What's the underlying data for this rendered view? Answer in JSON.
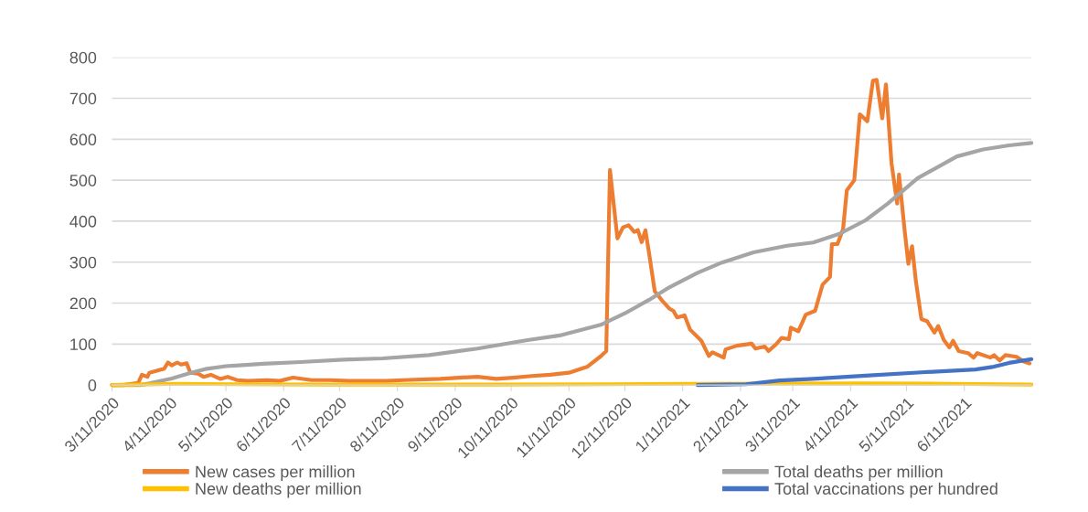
{
  "chart_data": {
    "type": "line",
    "xlim": [
      "2020-03-11",
      "2021-07-17"
    ],
    "xticks": [
      {
        "value": "2020-03-11",
        "label": "3/11/2020"
      },
      {
        "value": "2020-04-11",
        "label": "4/11/2020"
      },
      {
        "value": "2020-05-11",
        "label": "5/11/2020"
      },
      {
        "value": "2020-06-11",
        "label": "6/11/2020"
      },
      {
        "value": "2020-07-11",
        "label": "7/11/2020"
      },
      {
        "value": "2020-08-11",
        "label": "8/11/2020"
      },
      {
        "value": "2020-09-11",
        "label": "9/11/2020"
      },
      {
        "value": "2020-10-11",
        "label": "10/11/2020"
      },
      {
        "value": "2020-11-11",
        "label": "11/11/2020"
      },
      {
        "value": "2020-12-11",
        "label": "12/11/2020"
      },
      {
        "value": "2021-01-11",
        "label": "1/11/2021"
      },
      {
        "value": "2021-02-11",
        "label": "2/11/2021"
      },
      {
        "value": "2021-03-11",
        "label": "3/11/2021"
      },
      {
        "value": "2021-04-11",
        "label": "4/11/2021"
      },
      {
        "value": "2021-05-11",
        "label": "5/11/2021"
      },
      {
        "value": "2021-06-11",
        "label": "6/11/2021"
      }
    ],
    "ylim": [
      0,
      800
    ],
    "yticks": [
      0,
      100,
      200,
      300,
      400,
      500,
      600,
      700,
      800
    ],
    "grid": "y",
    "legend": "bottom",
    "marker": "none",
    "line_style": "solid",
    "series": [
      {
        "name": "New cases per million",
        "color": "#ed7d31",
        "x": [
          "2020-03-11",
          "2020-03-17",
          "2020-03-25",
          "2020-03-27",
          "2020-03-30",
          "2020-03-31",
          "2020-04-04",
          "2020-04-08",
          "2020-04-10",
          "2020-04-12",
          "2020-04-15",
          "2020-04-17",
          "2020-04-20",
          "2020-04-22",
          "2020-04-26",
          "2020-04-29",
          "2020-05-03",
          "2020-05-08",
          "2020-05-12",
          "2020-05-17",
          "2020-05-23",
          "2020-06-02",
          "2020-06-09",
          "2020-06-16",
          "2020-06-26",
          "2020-07-06",
          "2020-07-16",
          "2020-08-05",
          "2020-08-14",
          "2020-09-03",
          "2020-09-13",
          "2020-09-23",
          "2020-10-03",
          "2020-10-12",
          "2020-10-22",
          "2020-11-01",
          "2020-11-11",
          "2020-11-21",
          "2020-11-28",
          "2020-12-01",
          "2020-12-03",
          "2020-12-07",
          "2020-12-10",
          "2020-12-13",
          "2020-12-16",
          "2020-12-18",
          "2020-12-20",
          "2020-12-22",
          "2020-12-24",
          "2020-12-27",
          "2020-12-31",
          "2021-01-04",
          "2021-01-06",
          "2021-01-08",
          "2021-01-12",
          "2021-01-15",
          "2021-01-21",
          "2021-01-25",
          "2021-01-27",
          "2021-02-02",
          "2021-02-03",
          "2021-02-09",
          "2021-02-17",
          "2021-02-19",
          "2021-02-24",
          "2021-02-26",
          "2021-03-02",
          "2021-03-05",
          "2021-03-09",
          "2021-03-10",
          "2021-03-14",
          "2021-03-18",
          "2021-03-23",
          "2021-03-27",
          "2021-03-31",
          "2021-04-01",
          "2021-04-04",
          "2021-04-07",
          "2021-04-09",
          "2021-04-13",
          "2021-04-16",
          "2021-04-20",
          "2021-04-23",
          "2021-04-25",
          "2021-04-28",
          "2021-04-30",
          "2021-05-03",
          "2021-05-06",
          "2021-05-07",
          "2021-05-10",
          "2021-05-12",
          "2021-05-14",
          "2021-05-16",
          "2021-05-19",
          "2021-05-22",
          "2021-05-26",
          "2021-05-28",
          "2021-05-31",
          "2021-06-03",
          "2021-06-05",
          "2021-06-08",
          "2021-06-13",
          "2021-06-16",
          "2021-06-18",
          "2021-06-25",
          "2021-06-27",
          "2021-06-30",
          "2021-07-03",
          "2021-07-09",
          "2021-07-13",
          "2021-07-16"
        ],
        "values": [
          0,
          0,
          5,
          25,
          20,
          30,
          35,
          40,
          55,
          48,
          55,
          50,
          53,
          30,
          28,
          20,
          25,
          15,
          20,
          12,
          10,
          12,
          10,
          18,
          12,
          12,
          10,
          10,
          12,
          15,
          18,
          20,
          15,
          18,
          22,
          25,
          30,
          45,
          70,
          83,
          525,
          358,
          385,
          390,
          374,
          378,
          349,
          378,
          321,
          229,
          206,
          186,
          181,
          165,
          170,
          135,
          108,
          71,
          80,
          67,
          87,
          96,
          101,
          89,
          94,
          83,
          99,
          115,
          112,
          140,
          131,
          172,
          181,
          245,
          264,
          344,
          344,
          381,
          475,
          500,
          661,
          644,
          743,
          745,
          651,
          734,
          541,
          443,
          514,
          378,
          296,
          339,
          255,
          161,
          156,
          128,
          144,
          110,
          92,
          108,
          83,
          78,
          67,
          78,
          67,
          73,
          60,
          73,
          69,
          57,
          53
        ]
      },
      {
        "name": "Total deaths per million",
        "color": "#a5a5a5",
        "x": [
          "2020-03-11",
          "2020-03-26",
          "2020-03-31",
          "2020-04-12",
          "2020-04-21",
          "2020-04-30",
          "2020-05-11",
          "2020-05-31",
          "2020-06-20",
          "2020-07-13",
          "2020-08-03",
          "2020-08-28",
          "2020-09-23",
          "2020-10-19",
          "2020-11-06",
          "2020-11-28",
          "2020-12-11",
          "2020-12-24",
          "2021-01-04",
          "2021-01-19",
          "2021-02-01",
          "2021-02-18",
          "2021-03-08",
          "2021-03-22",
          "2021-04-05",
          "2021-04-19",
          "2021-05-01",
          "2021-05-17",
          "2021-06-07",
          "2021-06-21",
          "2021-07-05",
          "2021-07-17"
        ],
        "values": [
          0,
          0,
          4,
          16,
          28,
          39,
          46,
          52,
          56,
          62,
          65,
          73,
          89,
          109,
          121,
          147,
          175,
          208,
          239,
          274,
          299,
          324,
          340,
          348,
          369,
          402,
          443,
          505,
          558,
          575,
          585,
          591
        ]
      },
      {
        "name": "New deaths per million",
        "color": "#ffc000",
        "x": [
          "2020-03-11",
          "2020-03-25",
          "2020-04-15",
          "2020-05-15",
          "2020-07-01",
          "2020-10-01",
          "2020-12-01",
          "2021-01-15",
          "2021-04-15",
          "2021-06-01",
          "2021-07-17"
        ],
        "values": [
          0,
          1,
          3,
          2,
          1,
          1,
          2,
          3,
          4,
          3,
          1
        ]
      },
      {
        "name": "Total vaccinations per hundred",
        "color": "#4472c4",
        "x": [
          "2021-01-19",
          "2021-02-14",
          "2021-03-04",
          "2021-03-22",
          "2021-04-19",
          "2021-05-19",
          "2021-06-17",
          "2021-06-26",
          "2021-07-05",
          "2021-07-17"
        ],
        "values": [
          0,
          2,
          11,
          15,
          23,
          31,
          38,
          44,
          54,
          63
        ]
      }
    ]
  }
}
